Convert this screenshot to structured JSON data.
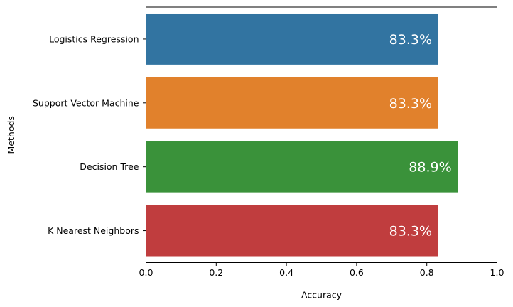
{
  "chart_data": {
    "type": "bar",
    "orientation": "horizontal",
    "title": "",
    "xlabel": "Accuracy",
    "ylabel": "Methods",
    "xlim": [
      0,
      1.0
    ],
    "x_ticks": [
      "0.0",
      "0.2",
      "0.4",
      "0.6",
      "0.8",
      "1.0"
    ],
    "x_tick_values": [
      0,
      0.2,
      0.4,
      0.6,
      0.8,
      1.0
    ],
    "grid": false,
    "legend": "none",
    "categories": [
      "Logistics Regression",
      "Support Vector Machine",
      "Decision Tree",
      "K Nearest Neighbors"
    ],
    "values": [
      0.833,
      0.833,
      0.889,
      0.833
    ],
    "data_labels": [
      "83.3%",
      "83.3%",
      "88.9%",
      "83.3%"
    ],
    "colors": [
      "#3274a1",
      "#e1812c",
      "#3a923a",
      "#c03d3e"
    ]
  }
}
